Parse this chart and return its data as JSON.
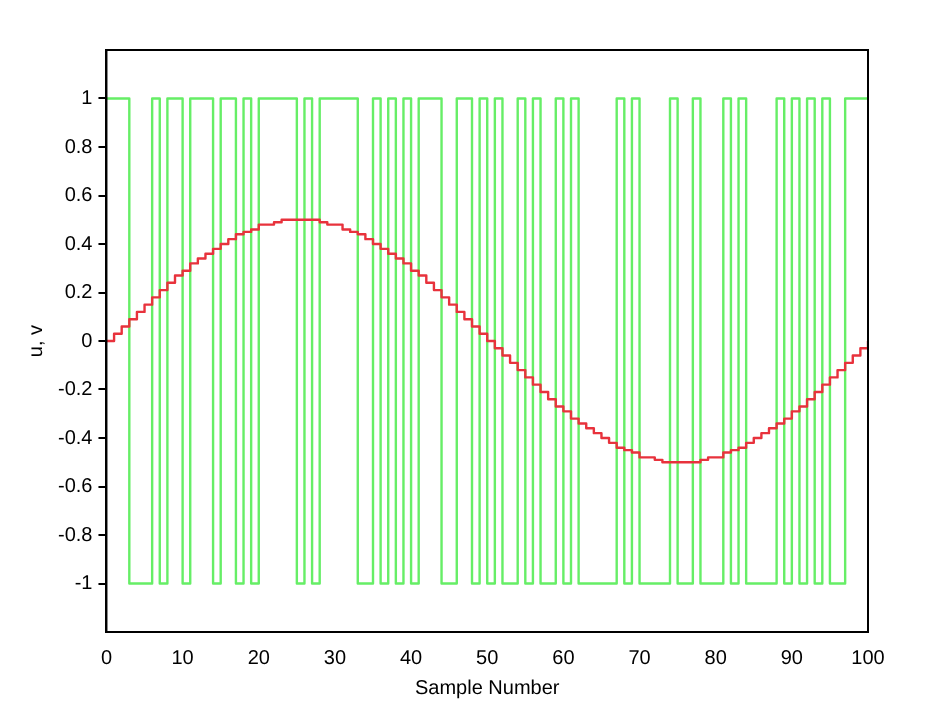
{
  "chart_data": {
    "type": "step",
    "xlabel": "Sample Number",
    "ylabel": "u, v",
    "x": [
      0,
      1,
      2,
      3,
      4,
      5,
      6,
      7,
      8,
      9,
      10,
      11,
      12,
      13,
      14,
      15,
      16,
      17,
      18,
      19,
      20,
      21,
      22,
      23,
      24,
      25,
      26,
      27,
      28,
      29,
      30,
      31,
      32,
      33,
      34,
      35,
      36,
      37,
      38,
      39,
      40,
      41,
      42,
      43,
      44,
      45,
      46,
      47,
      48,
      49,
      50,
      51,
      52,
      53,
      54,
      55,
      56,
      57,
      58,
      59,
      60,
      61,
      62,
      63,
      64,
      65,
      66,
      67,
      68,
      69,
      70,
      71,
      72,
      73,
      74,
      75,
      76,
      77,
      78,
      79,
      80,
      81,
      82,
      83,
      84,
      85,
      86,
      87,
      88,
      89,
      90,
      91,
      92,
      93,
      94,
      95,
      96,
      97,
      98,
      99,
      100
    ],
    "series": [
      {
        "color": "#66ee66",
        "values": [
          1,
          1,
          1,
          -1,
          -1,
          -1,
          1,
          -1,
          1,
          1,
          -1,
          1,
          1,
          1,
          -1,
          1,
          1,
          -1,
          1,
          -1,
          1,
          1,
          1,
          1,
          1,
          -1,
          1,
          -1,
          1,
          1,
          1,
          1,
          1,
          -1,
          -1,
          1,
          -1,
          1,
          -1,
          1,
          -1,
          1,
          1,
          1,
          -1,
          -1,
          1,
          1,
          -1,
          1,
          -1,
          1,
          -1,
          -1,
          1,
          -1,
          1,
          -1,
          -1,
          1,
          -1,
          1,
          -1,
          -1,
          -1,
          -1,
          -1,
          1,
          -1,
          1,
          -1,
          -1,
          -1,
          -1,
          1,
          -1,
          -1,
          1,
          -1,
          -1,
          -1,
          1,
          -1,
          1,
          -1,
          -1,
          -1,
          -1,
          1,
          -1,
          1,
          -1,
          1,
          -1,
          1,
          -1,
          -1,
          1,
          1,
          1,
          1
        ]
      },
      {
        "color": "#e8323c",
        "values": [
          0,
          0.03,
          0.06,
          0.09,
          0.12,
          0.15,
          0.18,
          0.21,
          0.24,
          0.27,
          0.29,
          0.32,
          0.34,
          0.36,
          0.38,
          0.4,
          0.42,
          0.44,
          0.45,
          0.46,
          0.48,
          0.48,
          0.49,
          0.5,
          0.5,
          0.5,
          0.5,
          0.5,
          0.49,
          0.48,
          0.48,
          0.46,
          0.45,
          0.44,
          0.42,
          0.4,
          0.38,
          0.36,
          0.34,
          0.32,
          0.29,
          0.27,
          0.24,
          0.21,
          0.18,
          0.15,
          0.12,
          0.09,
          0.06,
          0.03,
          0,
          -0.03,
          -0.06,
          -0.09,
          -0.12,
          -0.15,
          -0.18,
          -0.21,
          -0.24,
          -0.27,
          -0.29,
          -0.32,
          -0.34,
          -0.36,
          -0.38,
          -0.4,
          -0.42,
          -0.44,
          -0.45,
          -0.46,
          -0.48,
          -0.48,
          -0.49,
          -0.5,
          -0.5,
          -0.5,
          -0.5,
          -0.5,
          -0.49,
          -0.48,
          -0.48,
          -0.46,
          -0.45,
          -0.44,
          -0.42,
          -0.4,
          -0.38,
          -0.36,
          -0.34,
          -0.32,
          -0.29,
          -0.27,
          -0.24,
          -0.21,
          -0.18,
          -0.15,
          -0.12,
          -0.09,
          -0.06,
          -0.03,
          0
        ]
      }
    ],
    "xlim": [
      0,
      100
    ],
    "xticks": [
      0,
      10,
      20,
      30,
      40,
      50,
      60,
      70,
      80,
      90,
      100
    ],
    "ylim": [
      -1.2,
      1.2
    ],
    "yticks": [
      -1,
      -0.8,
      -0.6,
      -0.4,
      -0.2,
      0,
      0.2,
      0.4,
      0.6,
      0.8,
      1
    ],
    "grid": false,
    "legend": false
  }
}
